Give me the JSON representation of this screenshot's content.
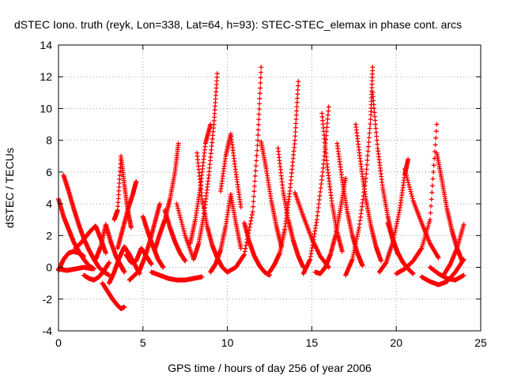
{
  "chart_data": {
    "type": "scatter",
    "title": "dSTEC Iono. truth (reyk, Lon=338, Lat=64, h=93): STEC-STEC_elemax in phase cont. arcs",
    "xlabel": "GPS time / hours of day 256 of year 2006",
    "ylabel": "dSTEC  / TECUs",
    "xlim": [
      0,
      25
    ],
    "ylim": [
      -4,
      14
    ],
    "xticks": [
      0,
      5,
      10,
      15,
      20,
      25
    ],
    "yticks": [
      -4,
      -2,
      0,
      2,
      4,
      6,
      8,
      10,
      12,
      14
    ],
    "grid": true,
    "marker": "+",
    "color": "#ff0000",
    "series": [
      {
        "x": [
          0.0,
          0.3,
          0.6,
          0.9,
          1.2,
          1.5,
          1.8,
          2.1
        ],
        "y": [
          4.3,
          3.2,
          2.4,
          1.6,
          1.0,
          0.5,
          0.1,
          -0.1
        ]
      },
      {
        "x": [
          0.0,
          0.3,
          0.6,
          0.9,
          1.2,
          1.5
        ],
        "y": [
          -0.2,
          0.5,
          0.9,
          1.0,
          0.9,
          0.7
        ]
      },
      {
        "x": [
          0.3,
          0.6,
          0.9,
          1.2,
          1.5,
          1.8,
          2.1,
          2.4,
          2.7,
          3.0
        ],
        "y": [
          5.8,
          4.8,
          3.7,
          2.7,
          1.8,
          1.1,
          0.5,
          0.0,
          -0.3,
          -0.5
        ]
      },
      {
        "x": [
          0.0,
          0.5,
          1.0,
          1.5,
          2.0
        ],
        "y": [
          -0.1,
          -0.2,
          -0.1,
          0.0,
          -0.1
        ]
      },
      {
        "x": [
          1.0,
          1.3,
          1.6,
          1.9,
          2.2,
          2.5,
          2.8
        ],
        "y": [
          1.2,
          1.5,
          1.9,
          2.3,
          2.6,
          1.8,
          0.9
        ]
      },
      {
        "x": [
          1.5,
          1.8,
          2.1,
          2.4,
          2.7,
          3.0
        ],
        "y": [
          -0.5,
          -0.7,
          -0.8,
          -0.6,
          -0.2,
          0.3
        ]
      },
      {
        "x": [
          2.2,
          2.5,
          2.8,
          3.1,
          3.4,
          3.7,
          3.9
        ],
        "y": [
          0.5,
          1.3,
          2.7,
          1.6,
          0.7,
          0.1,
          -0.3
        ]
      },
      {
        "x": [
          2.6,
          2.9,
          3.2,
          3.5,
          3.7,
          3.9
        ],
        "y": [
          -1.0,
          -1.5,
          -2.0,
          -2.4,
          -2.6,
          -2.5
        ]
      },
      {
        "x": [
          3.3,
          3.5,
          3.7,
          3.9,
          4.1,
          4.3
        ],
        "y": [
          3.0,
          3.6,
          7.0,
          5.2,
          3.6,
          2.5
        ]
      },
      {
        "x": [
          3.5,
          3.8,
          4.1,
          4.4,
          4.6
        ],
        "y": [
          1.2,
          2.4,
          3.6,
          4.6,
          5.4
        ]
      },
      {
        "x": [
          3.0,
          3.3,
          3.6,
          3.9,
          4.2,
          4.5,
          4.8
        ],
        "y": [
          -1.0,
          -0.3,
          0.6,
          1.3,
          0.8,
          0.2,
          -0.4
        ]
      },
      {
        "x": [
          4.0,
          4.3,
          4.6,
          4.9,
          5.2,
          5.5
        ],
        "y": [
          0.8,
          0.3,
          0.4,
          1.2,
          0.7,
          0.2
        ]
      },
      {
        "x": [
          4.2,
          4.5,
          4.8,
          5.1,
          5.4,
          5.7,
          6.0
        ],
        "y": [
          -0.8,
          -0.5,
          -0.2,
          0.6,
          1.6,
          2.8,
          4.0
        ]
      },
      {
        "x": [
          5.0,
          5.3,
          5.6,
          5.9,
          6.2
        ],
        "y": [
          3.2,
          2.2,
          1.3,
          0.5,
          0.0
        ]
      },
      {
        "x": [
          5.7,
          6.0,
          6.3,
          6.6,
          6.9,
          7.1
        ],
        "y": [
          1.1,
          2.1,
          3.0,
          4.3,
          6.0,
          7.8
        ]
      },
      {
        "x": [
          6.3,
          6.6,
          6.9,
          7.2,
          7.5
        ],
        "y": [
          3.6,
          2.5,
          1.6,
          0.9,
          0.4
        ]
      },
      {
        "x": [
          5.5,
          6.0,
          6.5,
          7.0,
          7.5,
          8.0,
          8.5
        ],
        "y": [
          -0.3,
          -0.5,
          -0.7,
          -0.8,
          -0.8,
          -0.7,
          -0.6
        ]
      },
      {
        "x": [
          7.0,
          7.5,
          8.0,
          8.3,
          8.6,
          8.9,
          9.2,
          9.4
        ],
        "y": [
          4.0,
          2.0,
          0.5,
          1.5,
          3.2,
          5.8,
          9.0,
          12.2
        ]
      },
      {
        "x": [
          7.8,
          8.1,
          8.4,
          8.7,
          9.0
        ],
        "y": [
          1.5,
          3.0,
          5.0,
          7.8,
          9.0
        ]
      },
      {
        "x": [
          8.2,
          8.5,
          8.8,
          9.1,
          9.4,
          9.7,
          10.0
        ],
        "y": [
          7.2,
          4.3,
          2.6,
          1.4,
          0.6,
          0.0,
          -0.3
        ]
      },
      {
        "x": [
          9.0,
          9.3,
          9.6,
          9.9,
          10.2,
          10.5,
          10.8
        ],
        "y": [
          -0.3,
          0.2,
          1.1,
          2.6,
          4.6,
          2.8,
          1.2
        ]
      },
      {
        "x": [
          9.6,
          9.9,
          10.2,
          10.5,
          10.8
        ],
        "y": [
          4.8,
          7.0,
          8.4,
          6.0,
          3.8
        ]
      },
      {
        "x": [
          10.0,
          10.5,
          11.0,
          11.5,
          11.8,
          12.0
        ],
        "y": [
          -0.3,
          0.0,
          0.8,
          3.5,
          8.0,
          12.6
        ]
      },
      {
        "x": [
          11.0,
          11.3,
          11.6,
          11.9,
          12.2,
          12.5
        ],
        "y": [
          2.8,
          1.6,
          0.7,
          0.1,
          -0.3,
          -0.5
        ]
      },
      {
        "x": [
          12.0,
          12.3,
          12.6,
          12.9,
          13.2
        ],
        "y": [
          7.9,
          6.2,
          4.2,
          2.6,
          1.3
        ]
      },
      {
        "x": [
          12.5,
          12.8,
          13.1,
          13.4,
          13.7,
          14.0,
          14.2
        ],
        "y": [
          -0.3,
          0.2,
          0.9,
          2.4,
          4.8,
          8.0,
          11.7
        ]
      },
      {
        "x": [
          13.0,
          13.3,
          13.6,
          13.9,
          14.2,
          14.5
        ],
        "y": [
          7.5,
          4.8,
          3.0,
          1.7,
          0.7,
          0.0
        ]
      },
      {
        "x": [
          14.0,
          14.5,
          15.0,
          15.5,
          16.0
        ],
        "y": [
          4.7,
          3.2,
          1.8,
          0.7,
          0.0
        ]
      },
      {
        "x": [
          14.5,
          14.9,
          15.3,
          15.7,
          16.0
        ],
        "y": [
          -0.4,
          0.5,
          3.0,
          6.5,
          10.1
        ]
      },
      {
        "x": [
          15.6,
          15.9,
          16.2,
          16.5,
          16.8
        ],
        "y": [
          9.7,
          6.5,
          4.0,
          2.2,
          1.0
        ]
      },
      {
        "x": [
          15.2,
          15.5,
          15.8,
          16.1,
          16.4,
          16.7,
          17.0
        ],
        "y": [
          -0.3,
          -0.4,
          0.0,
          0.8,
          2.0,
          3.7,
          5.6
        ]
      },
      {
        "x": [
          16.5,
          16.8,
          17.1,
          17.4,
          17.7,
          18.0
        ],
        "y": [
          7.8,
          5.5,
          3.5,
          2.0,
          0.9,
          0.1
        ]
      },
      {
        "x": [
          17.0,
          17.4,
          17.8,
          18.2,
          18.5,
          18.6
        ],
        "y": [
          -0.5,
          0.5,
          2.5,
          5.6,
          9.6,
          12.6
        ]
      },
      {
        "x": [
          17.6,
          17.9,
          18.2,
          18.5,
          18.8,
          19.1
        ],
        "y": [
          9.0,
          6.5,
          4.3,
          2.6,
          1.3,
          0.4
        ]
      },
      {
        "x": [
          18.6,
          18.9,
          19.2,
          19.5,
          19.8,
          20.1
        ],
        "y": [
          11.0,
          7.5,
          5.0,
          3.2,
          1.8,
          0.8
        ]
      },
      {
        "x": [
          19.0,
          19.4,
          19.8,
          20.2,
          20.5,
          20.7
        ],
        "y": [
          -0.3,
          0.3,
          1.6,
          3.6,
          5.8,
          6.8
        ]
      },
      {
        "x": [
          19.5,
          19.8,
          20.1,
          20.4,
          20.7,
          21.0
        ],
        "y": [
          2.8,
          1.7,
          0.9,
          0.3,
          -0.1,
          -0.4
        ]
      },
      {
        "x": [
          20.0,
          20.5,
          21.0,
          21.5,
          22.0,
          22.4
        ],
        "y": [
          -0.4,
          -0.1,
          0.4,
          1.2,
          3.0,
          9.0
        ]
      },
      {
        "x": [
          20.5,
          21.0,
          21.5,
          22.0,
          22.5
        ],
        "y": [
          6.2,
          4.2,
          2.8,
          1.5,
          0.6
        ]
      },
      {
        "x": [
          22.4,
          22.7,
          23.0,
          23.3,
          23.6,
          23.9
        ],
        "y": [
          7.2,
          5.5,
          3.7,
          2.3,
          1.2,
          0.4
        ]
      },
      {
        "x": [
          21.5,
          22.0,
          22.5,
          23.0,
          23.5,
          24.0
        ],
        "y": [
          -0.6,
          -0.9,
          -1.1,
          -0.9,
          -0.3,
          0.5
        ]
      },
      {
        "x": [
          22.8,
          23.2,
          23.6,
          24.0
        ],
        "y": [
          -0.5,
          0.2,
          1.2,
          2.7
        ]
      },
      {
        "x": [
          22.0,
          22.5,
          23.0,
          23.5,
          24.0
        ],
        "y": [
          0.0,
          -0.4,
          -0.7,
          -0.8,
          -0.5
        ]
      }
    ]
  }
}
